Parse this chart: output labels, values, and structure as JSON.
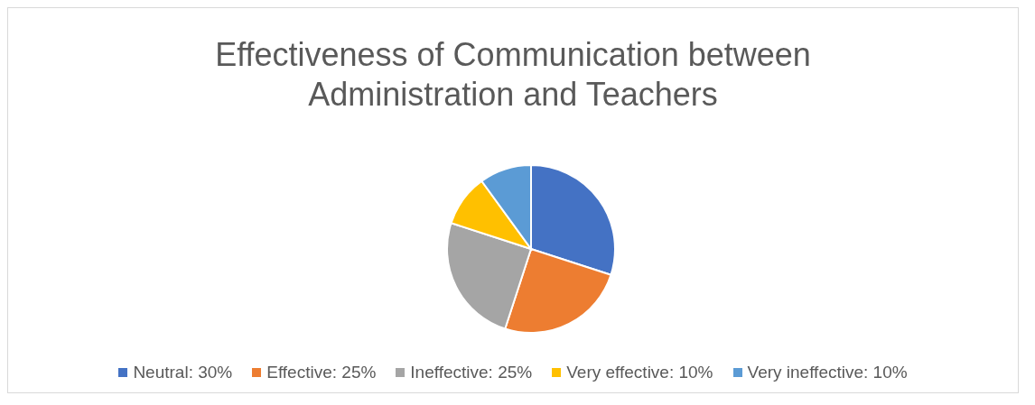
{
  "chart_data": {
    "type": "pie",
    "title": "Effectiveness of Communication between Administration and Teachers",
    "categories": [
      "Neutral: 30%",
      "Effective: 25%",
      "Ineffective: 25%",
      "Very effective: 10%",
      "Very ineffective: 10%"
    ],
    "values": [
      30,
      25,
      25,
      10,
      10
    ],
    "colors": [
      "#4472c4",
      "#ed7d31",
      "#a5a5a5",
      "#ffc000",
      "#5b9bd5"
    ],
    "legend": "bottom"
  }
}
